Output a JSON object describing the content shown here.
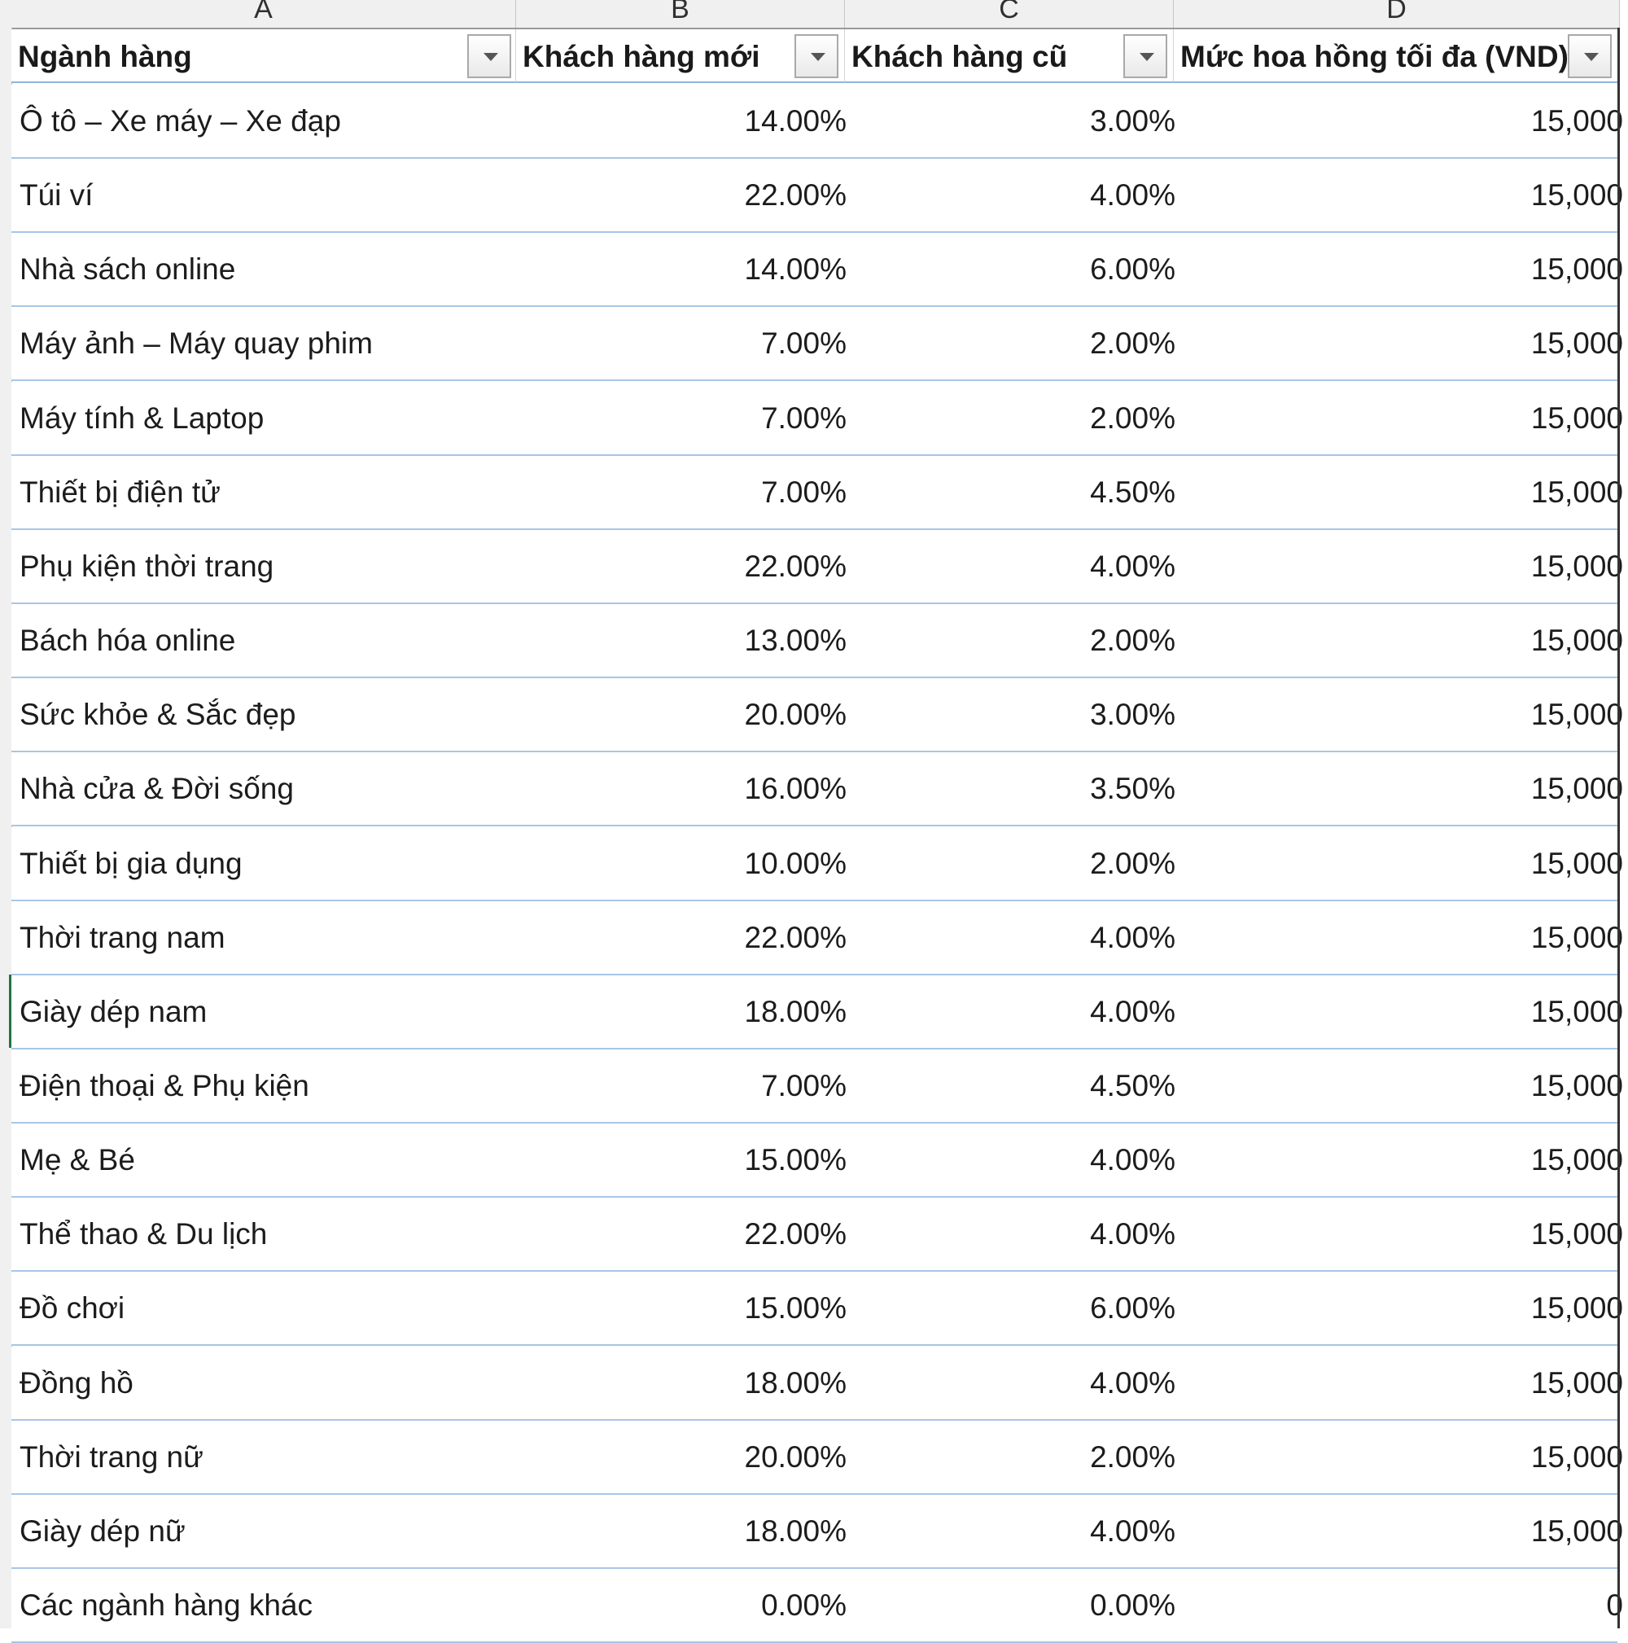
{
  "column_letters": [
    "A",
    "B",
    "C",
    "D"
  ],
  "table": {
    "headers": [
      "Ngành hàng",
      "Khách hàng mới",
      "Khách hàng cũ",
      "Mức hoa hồng tối đa (VND)"
    ],
    "rows": [
      [
        "Ô tô – Xe máy – Xe đạp",
        "14.00%",
        "3.00%",
        "15,000"
      ],
      [
        "Túi ví",
        "22.00%",
        "4.00%",
        "15,000"
      ],
      [
        "Nhà sách online",
        "14.00%",
        "6.00%",
        "15,000"
      ],
      [
        "Máy ảnh – Máy quay phim",
        "7.00%",
        "2.00%",
        "15,000"
      ],
      [
        "Máy tính & Laptop",
        "7.00%",
        "2.00%",
        "15,000"
      ],
      [
        "Thiết bị điện tử",
        "7.00%",
        "4.50%",
        "15,000"
      ],
      [
        "Phụ kiện thời trang",
        "22.00%",
        "4.00%",
        "15,000"
      ],
      [
        "Bách hóa online",
        "13.00%",
        "2.00%",
        "15,000"
      ],
      [
        "Sức khỏe & Sắc đẹp",
        "20.00%",
        "3.00%",
        "15,000"
      ],
      [
        "Nhà cửa & Đời sống",
        "16.00%",
        "3.50%",
        "15,000"
      ],
      [
        "Thiết bị gia dụng",
        "10.00%",
        "2.00%",
        "15,000"
      ],
      [
        "Thời trang nam",
        "22.00%",
        "4.00%",
        "15,000"
      ],
      [
        "Giày dép nam",
        "18.00%",
        "4.00%",
        "15,000"
      ],
      [
        "Điện thoại & Phụ kiện",
        "7.00%",
        "4.50%",
        "15,000"
      ],
      [
        "Mẹ & Bé",
        "15.00%",
        "4.00%",
        "15,000"
      ],
      [
        "Thể thao & Du lịch",
        "22.00%",
        "4.00%",
        "15,000"
      ],
      [
        "Đồ chơi",
        "15.00%",
        "6.00%",
        "15,000"
      ],
      [
        "Đồng hồ",
        "18.00%",
        "4.00%",
        "15,000"
      ],
      [
        "Thời trang nữ",
        "20.00%",
        "2.00%",
        "15,000"
      ],
      [
        "Giày dép nữ",
        "18.00%",
        "4.00%",
        "15,000"
      ],
      [
        "Các ngành hàng khác",
        "0.00%",
        "0.00%",
        "0"
      ]
    ]
  },
  "colors": {
    "grid_line": "#a8c6e5",
    "active_row_marker": "#217346"
  }
}
